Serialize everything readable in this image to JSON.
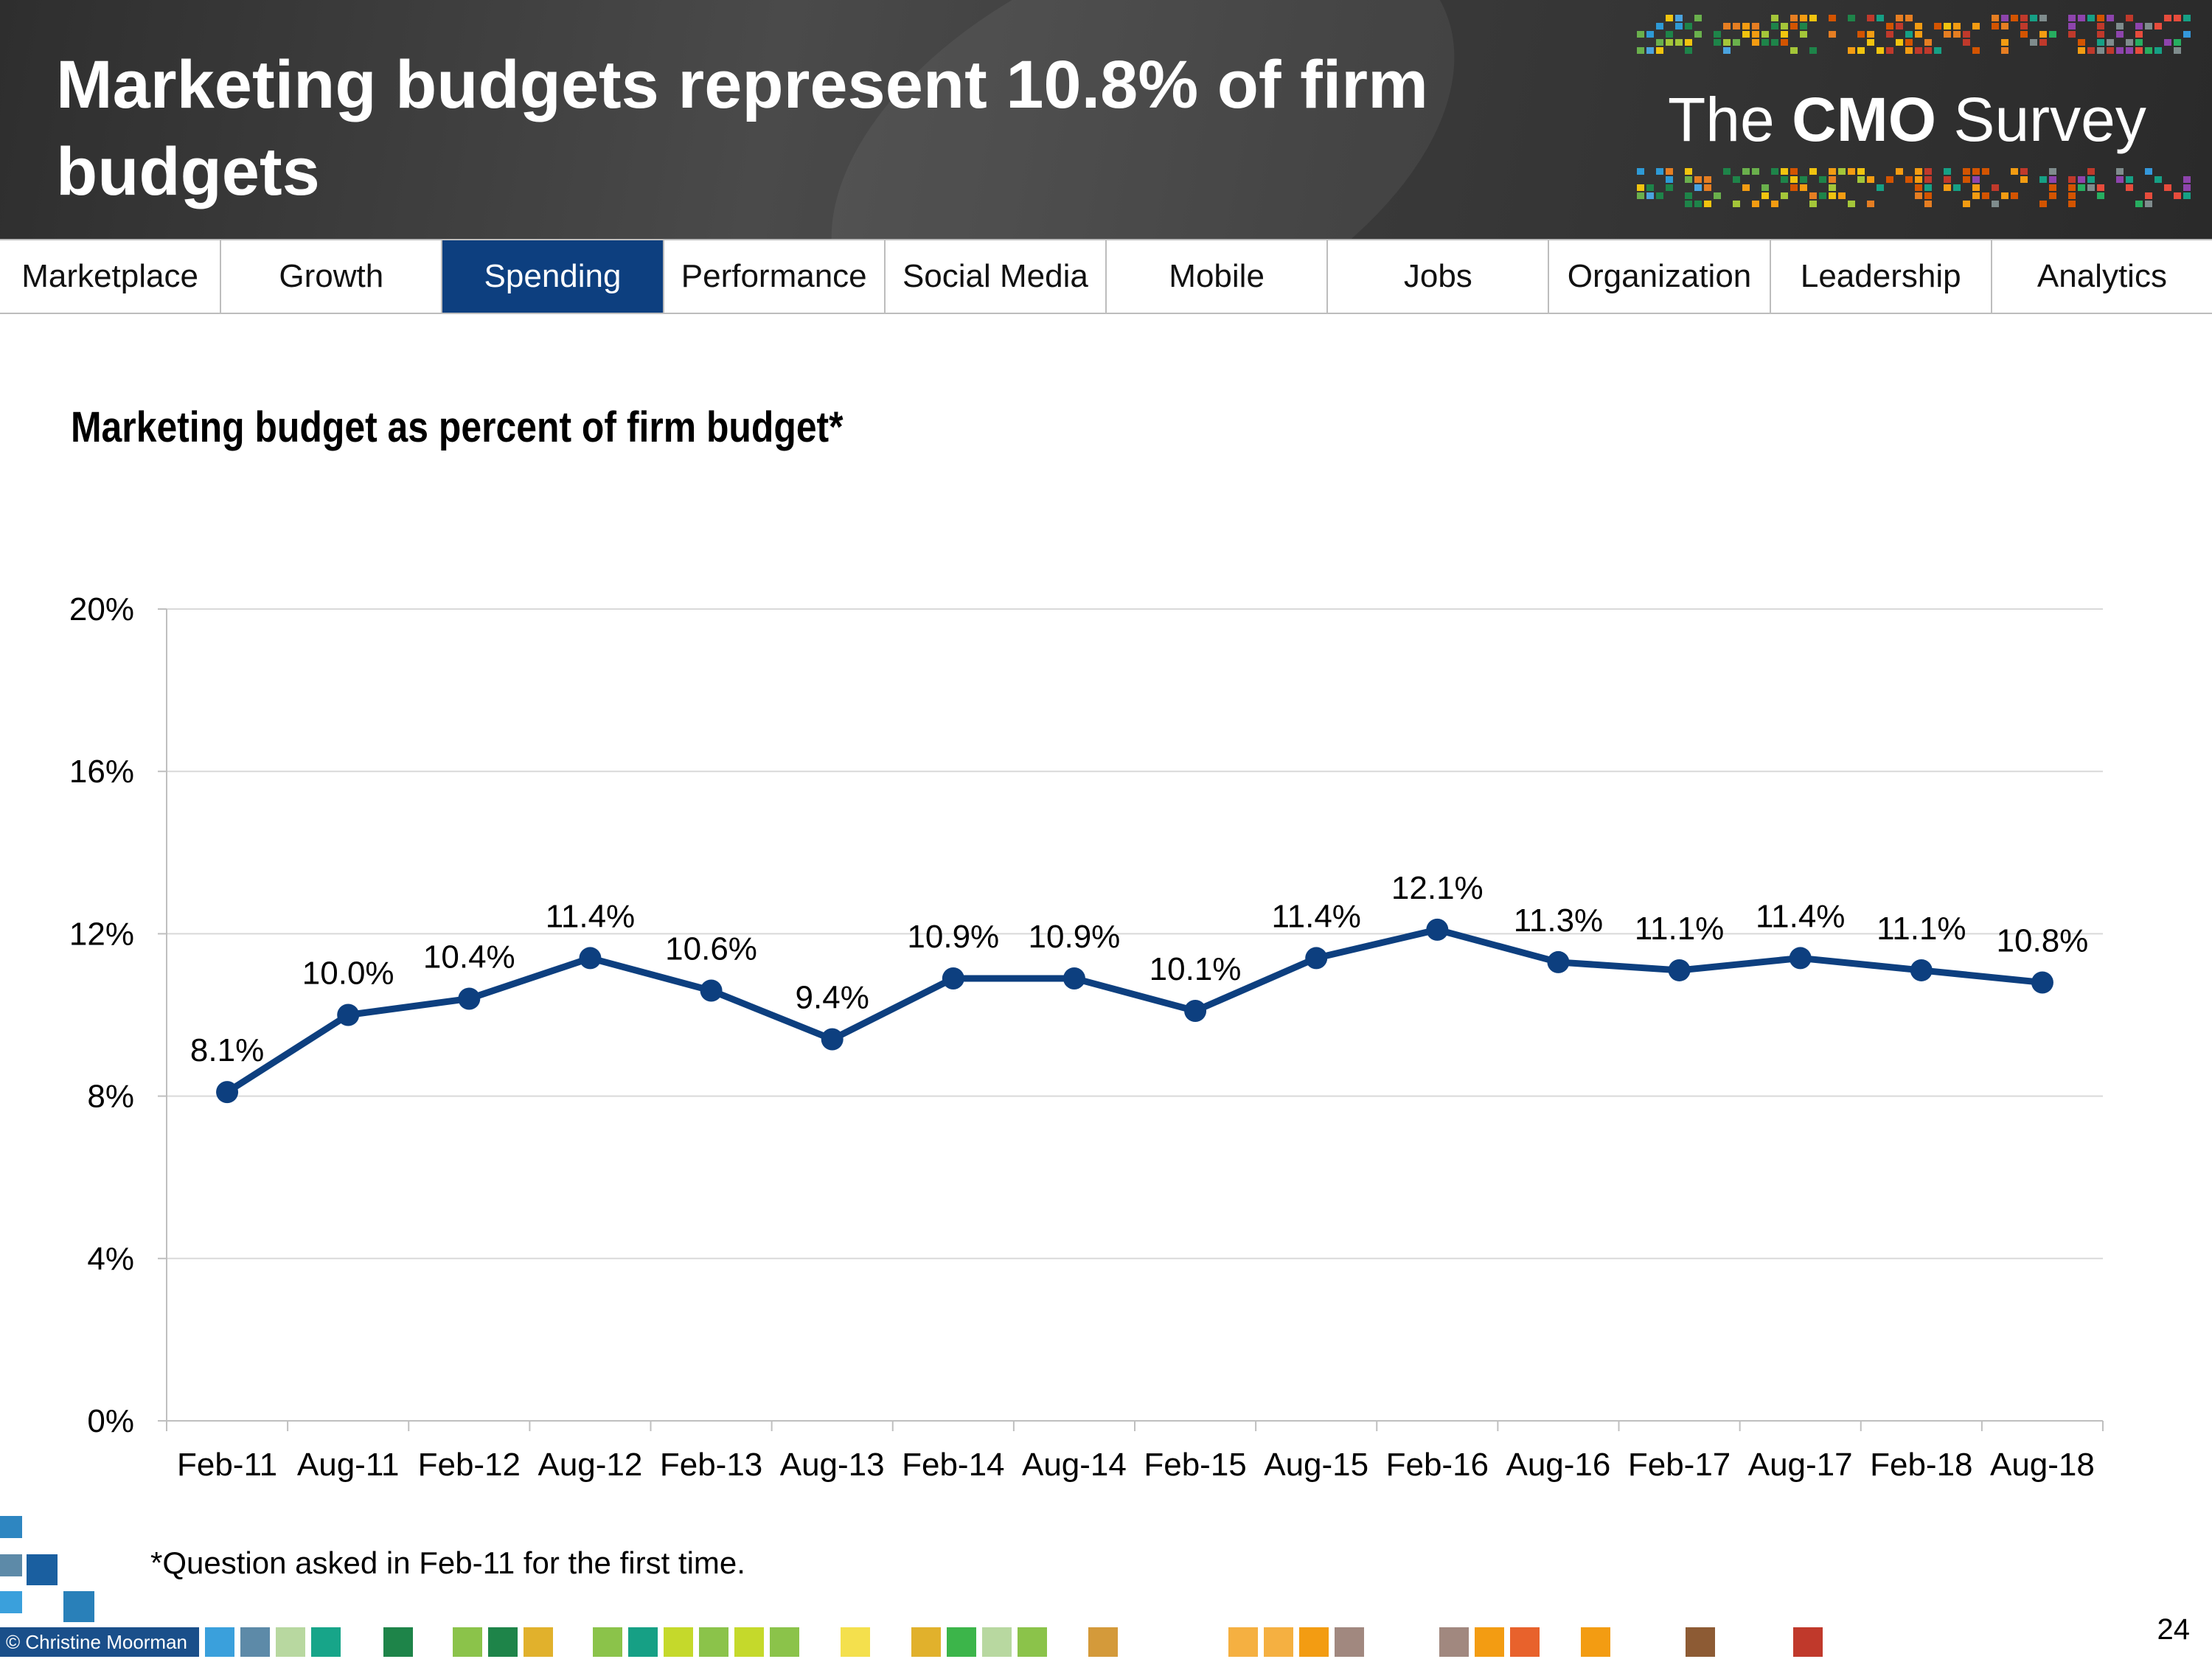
{
  "header": {
    "title": "Marketing budgets represent 10.8% of firm budgets",
    "logo": {
      "prefix": "The ",
      "bold": "CMO",
      "suffix": " Survey"
    }
  },
  "nav": {
    "tabs": [
      {
        "label": "Marketplace"
      },
      {
        "label": "Growth"
      },
      {
        "label": "Spending",
        "active": true
      },
      {
        "label": "Performance"
      },
      {
        "label": "Social Media"
      },
      {
        "label": "Mobile"
      },
      {
        "label": "Jobs"
      },
      {
        "label": "Organization"
      },
      {
        "label": "Leadership"
      },
      {
        "label": "Analytics"
      }
    ]
  },
  "chart_data": {
    "type": "line",
    "title": "Marketing budget as percent of firm budget*",
    "xlabel": "",
    "ylabel": "",
    "categories": [
      "Feb-11",
      "Aug-11",
      "Feb-12",
      "Aug-12",
      "Feb-13",
      "Aug-13",
      "Feb-14",
      "Aug-14",
      "Feb-15",
      "Aug-15",
      "Feb-16",
      "Aug-16",
      "Feb-17",
      "Aug-17",
      "Feb-18",
      "Aug-18"
    ],
    "series": [
      {
        "values": [
          8.1,
          10.0,
          10.4,
          11.4,
          10.6,
          9.4,
          10.9,
          10.9,
          10.1,
          11.4,
          12.1,
          11.3,
          11.1,
          11.4,
          11.1,
          10.8
        ],
        "labels": [
          "8.1%",
          "10.0%",
          "10.4%",
          "11.4%",
          "10.6%",
          "9.4%",
          "10.9%",
          "10.9%",
          "10.1%",
          "11.4%",
          "12.1%",
          "11.3%",
          "11.1%",
          "11.4%",
          "11.1%",
          "10.8%"
        ]
      }
    ],
    "ylim": [
      0,
      20
    ],
    "yticks": [
      0,
      4,
      8,
      12,
      16,
      20
    ],
    "ytick_labels": [
      "0%",
      "4%",
      "8%",
      "12%",
      "16%",
      "20%"
    ],
    "grid": true,
    "legend": "none",
    "line_color": "#0d3f7f"
  },
  "footnote": "*Question asked in Feb-11 for the first time.",
  "footer": {
    "copyright": "© Christine Moorman",
    "page_number": "24"
  }
}
